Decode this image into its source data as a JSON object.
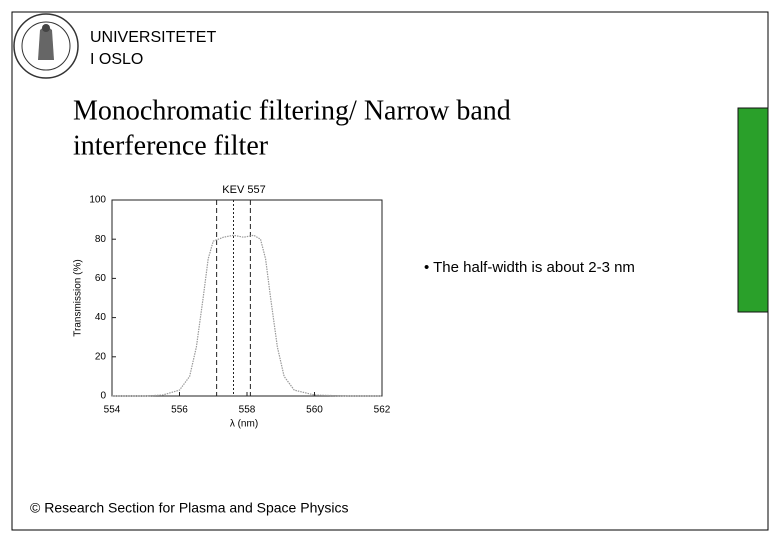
{
  "header": {
    "institution_line1": "UNIVERSITETET",
    "institution_line2": "I OSLO"
  },
  "title_line1": "Monochromatic filtering/ Narrow band",
  "title_line2": "interference filter",
  "bullet": "• The half-width is about 2-3 nm",
  "footer": "© Research Section for Plasma and Space Physics",
  "chart_data": {
    "type": "line",
    "title": "KEV 557",
    "x_label": "λ (nm)",
    "y_label": "Transmission (%)",
    "x": [
      554,
      555,
      555.5,
      556,
      556.3,
      556.5,
      556.7,
      556.85,
      557,
      557.3,
      557.6,
      557.9,
      558.2,
      558.4,
      558.55,
      558.7,
      558.9,
      559.1,
      559.4,
      560,
      561,
      562
    ],
    "series": [
      {
        "name": "Transmission",
        "color": "#999999",
        "values": [
          0,
          0,
          0.5,
          3,
          10,
          25,
          50,
          70,
          79,
          81,
          82,
          81,
          82,
          80,
          70,
          50,
          25,
          10,
          3,
          0.5,
          0,
          0
        ]
      }
    ],
    "vlines": [
      557.1,
      557.6,
      558.1
    ],
    "xlim": [
      554,
      562
    ],
    "xticks": [
      554,
      556,
      558,
      560,
      562
    ],
    "ylim": [
      0,
      100
    ],
    "yticks": [
      0,
      20,
      40,
      60,
      80,
      100
    ]
  }
}
